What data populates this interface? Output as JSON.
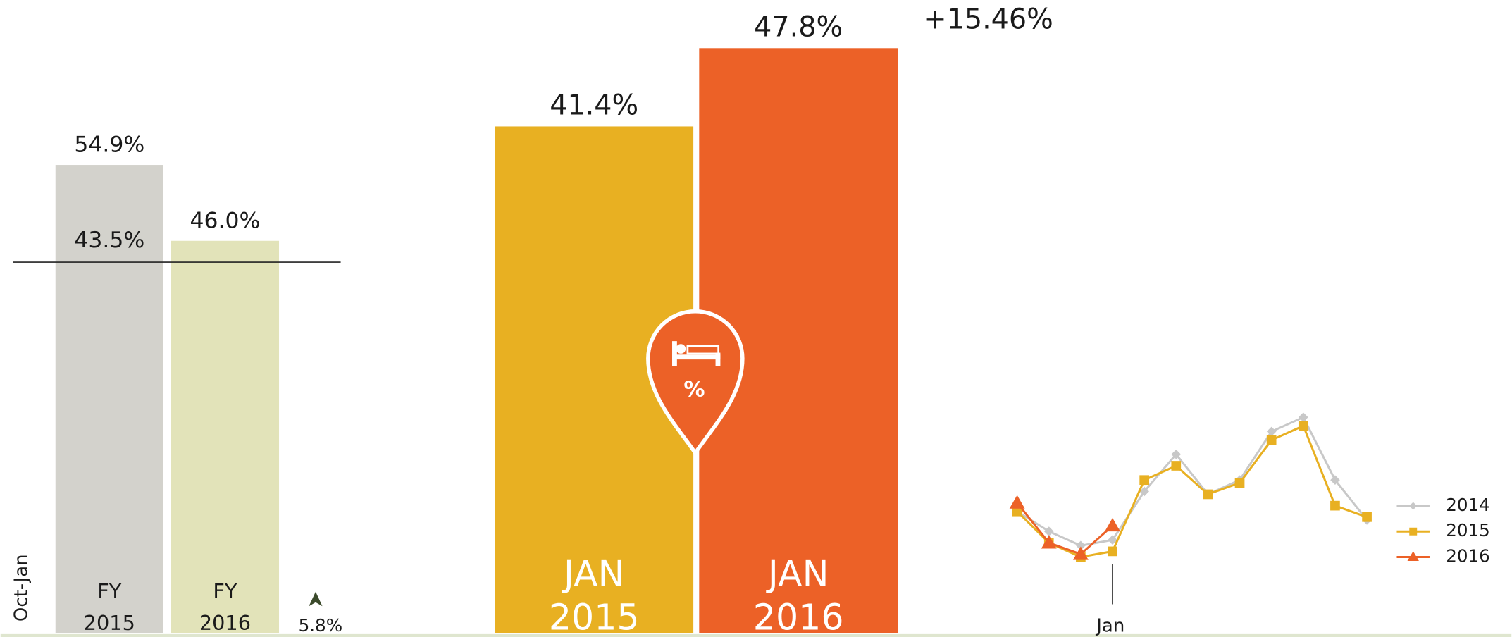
{
  "chart_data": [
    {
      "type": "bar",
      "axis_label": "Oct-Jan",
      "categories": [
        "FY 2015",
        "FY 2016"
      ],
      "values": [
        54.9,
        46.0
      ],
      "value_labels": [
        "54.9%",
        "46.0%"
      ],
      "colors": [
        "#d3d2cc",
        "#e2e3b9"
      ],
      "reference": {
        "value": 43.5,
        "label": "43.5%"
      },
      "change": "5.8%"
    },
    {
      "type": "bar",
      "categories": [
        "JAN 2015",
        "JAN 2016"
      ],
      "values": [
        41.4,
        47.8
      ],
      "value_labels": [
        "41.4%",
        "47.8%"
      ],
      "colors": [
        "#e8b022",
        "#ec6127"
      ],
      "change": "+15.46%",
      "icon_label": "%"
    },
    {
      "type": "line",
      "categories": [
        null,
        null,
        null,
        "Jan",
        null,
        null,
        null,
        null,
        null,
        null,
        null,
        null
      ],
      "series": [
        {
          "name": "2014",
          "color": "#c8c8c8",
          "marker": "diamond",
          "values": [
            43,
            36,
            31,
            33,
            50,
            63,
            49,
            54,
            71,
            76,
            54,
            40
          ]
        },
        {
          "name": "2015",
          "color": "#e8b022",
          "marker": "square",
          "values": [
            43,
            32,
            27,
            29,
            54,
            59,
            49,
            53,
            68,
            73,
            45,
            41
          ]
        },
        {
          "name": "2016",
          "color": "#ec6127",
          "marker": "triangle",
          "values": [
            46,
            32,
            28,
            38,
            null,
            null,
            null,
            null,
            null,
            null,
            null,
            null
          ]
        }
      ],
      "legend": "right"
    }
  ]
}
